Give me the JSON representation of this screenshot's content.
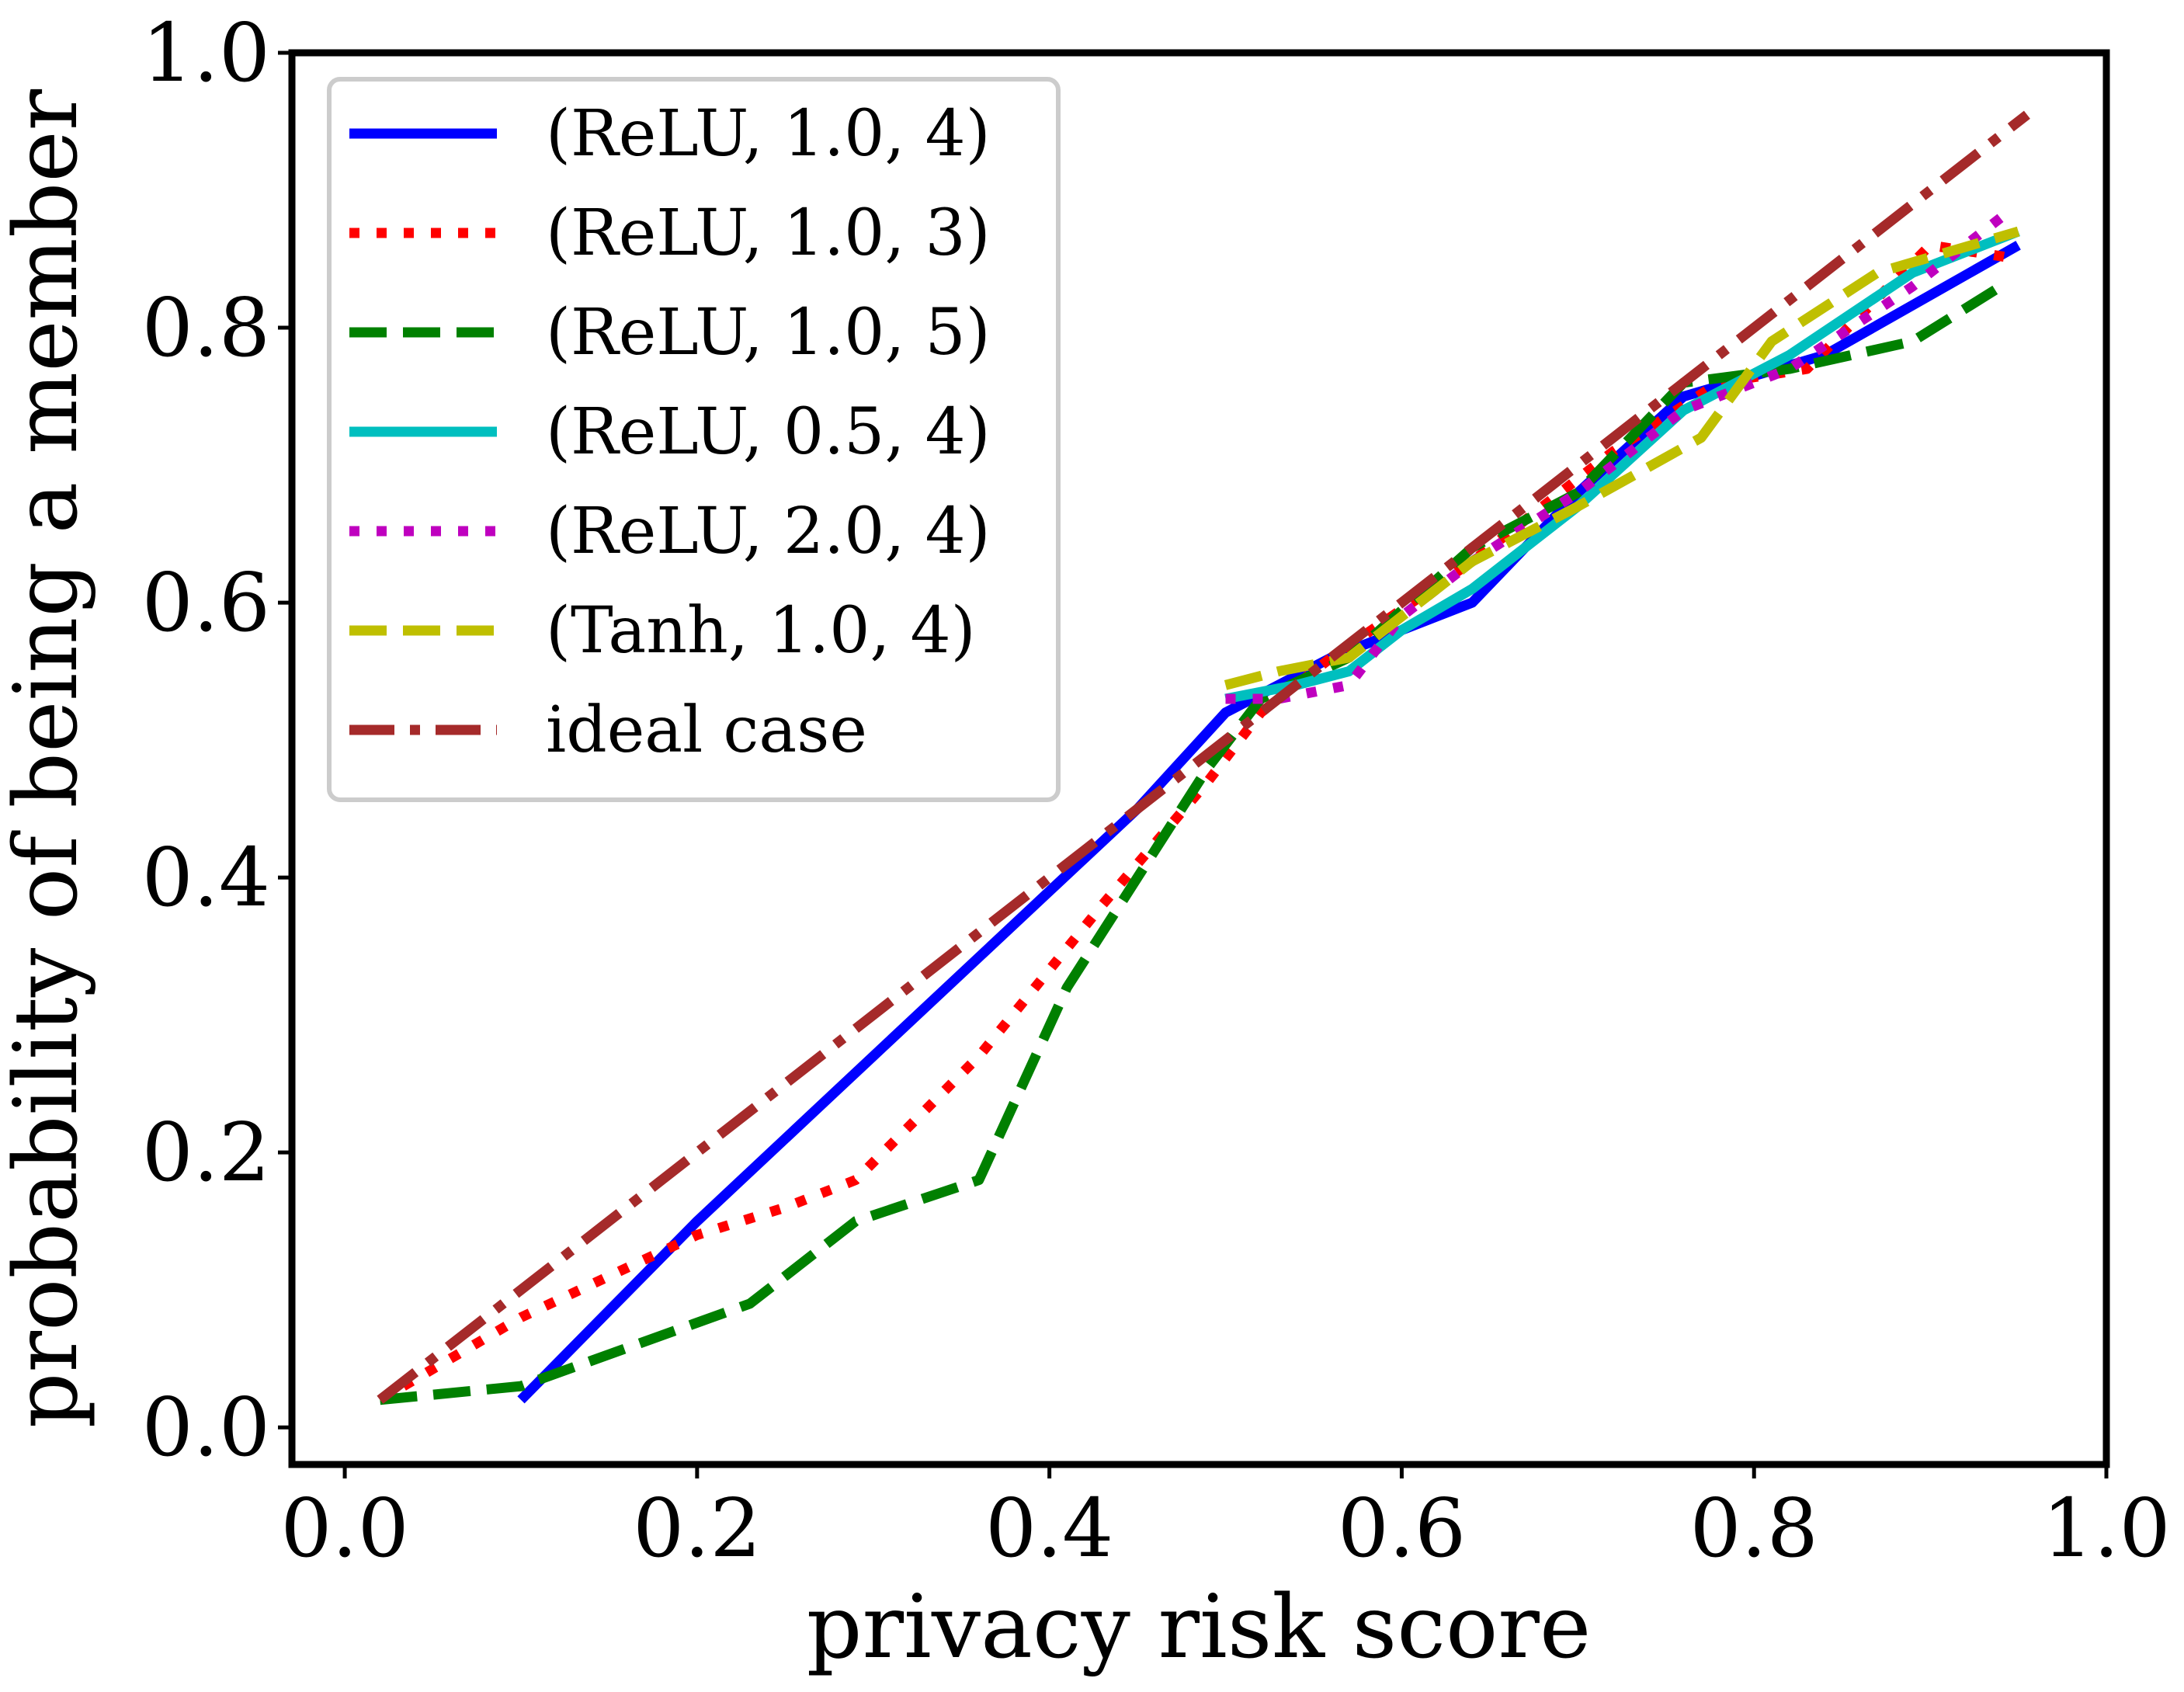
{
  "chart_data": {
    "type": "line",
    "title": "",
    "xlabel": "privacy risk score",
    "ylabel": "probability of being a member",
    "xlim": [
      -0.03,
      1.0
    ],
    "ylim": [
      -0.027,
      1.0
    ],
    "xticks": [
      0.0,
      0.2,
      0.4,
      0.6,
      0.8,
      1.0
    ],
    "yticks": [
      0.0,
      0.2,
      0.4,
      0.6,
      0.8,
      1.0
    ],
    "xtick_labels": [
      "0.0",
      "0.2",
      "0.4",
      "0.6",
      "0.8",
      "1.0"
    ],
    "ytick_labels": [
      "0.0",
      "0.2",
      "0.4",
      "0.6",
      "0.8",
      "1.0"
    ],
    "grid": false,
    "legend_position": "upper-left",
    "series": [
      {
        "name": "(ReLU, 1.0, 4)",
        "color": "#0000ff",
        "style": "solid",
        "x": [
          0.1,
          0.2,
          0.3,
          0.4,
          0.45,
          0.5,
          0.56,
          0.6,
          0.64,
          0.7,
          0.76,
          0.84,
          0.95
        ],
        "y": [
          0.02,
          0.15,
          0.27,
          0.39,
          0.45,
          0.52,
          0.56,
          0.58,
          0.6,
          0.68,
          0.75,
          0.78,
          0.86
        ]
      },
      {
        "name": "(ReLU, 1.0, 3)",
        "color": "#ff0000",
        "style": "dotted",
        "x": [
          0.02,
          0.1,
          0.2,
          0.25,
          0.29,
          0.36,
          0.43,
          0.49,
          0.52,
          0.56,
          0.64,
          0.72,
          0.78,
          0.83,
          0.9,
          0.95
        ],
        "y": [
          0.02,
          0.08,
          0.14,
          0.16,
          0.18,
          0.27,
          0.38,
          0.47,
          0.52,
          0.56,
          0.63,
          0.71,
          0.76,
          0.77,
          0.86,
          0.85
        ]
      },
      {
        "name": "(ReLU, 1.0, 5)",
        "color": "#008000",
        "style": "dashed",
        "x": [
          0.02,
          0.1,
          0.23,
          0.29,
          0.36,
          0.41,
          0.49,
          0.52,
          0.57,
          0.64,
          0.7,
          0.76,
          0.82,
          0.89,
          0.94
        ],
        "y": [
          0.02,
          0.03,
          0.09,
          0.15,
          0.18,
          0.32,
          0.48,
          0.53,
          0.56,
          0.64,
          0.68,
          0.76,
          0.77,
          0.79,
          0.83
        ]
      },
      {
        "name": "(ReLU, 0.5, 4)",
        "color": "#00bfbf",
        "style": "solid",
        "x": [
          0.5,
          0.54,
          0.57,
          0.6,
          0.64,
          0.7,
          0.76,
          0.82,
          0.89,
          0.95
        ],
        "y": [
          0.53,
          0.54,
          0.55,
          0.58,
          0.61,
          0.67,
          0.74,
          0.78,
          0.84,
          0.87
        ]
      },
      {
        "name": "(ReLU, 2.0, 4)",
        "color": "#bf00bf",
        "style": "dotted",
        "x": [
          0.5,
          0.53,
          0.57,
          0.6,
          0.64,
          0.7,
          0.76,
          0.82,
          0.89,
          0.94
        ],
        "y": [
          0.53,
          0.53,
          0.54,
          0.59,
          0.63,
          0.68,
          0.74,
          0.77,
          0.83,
          0.88
        ]
      },
      {
        "name": "(Tanh, 1.0, 4)",
        "color": "#bfbf00",
        "style": "dashed",
        "x": [
          0.5,
          0.53,
          0.57,
          0.64,
          0.7,
          0.77,
          0.81,
          0.87,
          0.95
        ],
        "y": [
          0.54,
          0.55,
          0.56,
          0.63,
          0.67,
          0.72,
          0.79,
          0.84,
          0.87
        ]
      },
      {
        "name": "ideal case",
        "color": "#a52a2a",
        "style": "dashdot",
        "x": [
          0.02,
          0.955
        ],
        "y": [
          0.02,
          0.955
        ]
      }
    ]
  }
}
